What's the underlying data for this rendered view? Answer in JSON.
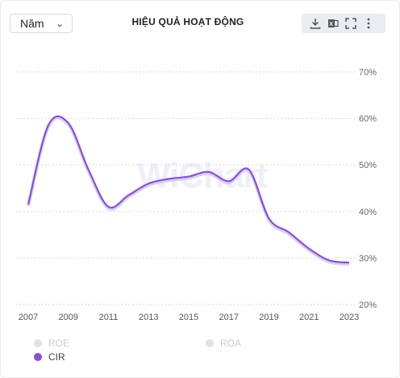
{
  "header": {
    "period_select": "Năm",
    "title": "HIỆU QUẢ HOẠT ĐỘNG"
  },
  "toolbar": {
    "icons": [
      "download-icon",
      "excel-icon",
      "fullscreen-icon",
      "more-icon"
    ]
  },
  "watermark": "WiChart",
  "legend": [
    {
      "label": "ROE",
      "color": "#d9dce1",
      "active": false
    },
    {
      "label": "ROA",
      "color": "#d9dce1",
      "active": false
    },
    {
      "label": "CIR",
      "color": "#8a4be8",
      "active": true
    }
  ],
  "chart_data": {
    "type": "line",
    "x": [
      2007,
      2008,
      2009,
      2010,
      2011,
      2012,
      2013,
      2014,
      2015,
      2016,
      2017,
      2018,
      2019,
      2020,
      2021,
      2022,
      2023
    ],
    "x_ticks": [
      "2007",
      "2009",
      "2011",
      "2013",
      "2015",
      "2017",
      "2019",
      "2021",
      "2023"
    ],
    "y_ticks": [
      "70%",
      "60%",
      "50%",
      "40%",
      "30%",
      "20%"
    ],
    "ylim": [
      20,
      70
    ],
    "series": [
      {
        "name": "CIR",
        "color": "#8a4be8",
        "values": [
          41.5,
          58.5,
          59.0,
          49.0,
          41.0,
          43.5,
          46.0,
          47.0,
          47.5,
          48.5,
          46.5,
          49.0,
          38.5,
          35.5,
          32.0,
          29.5,
          29.0
        ]
      }
    ],
    "grid": true,
    "legend_position": "bottom"
  }
}
